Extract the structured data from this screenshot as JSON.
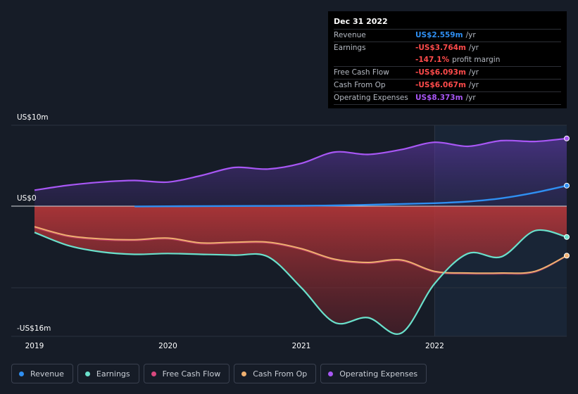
{
  "tooltip": {
    "date": "Dec 31 2022",
    "rows": [
      {
        "label": "Revenue",
        "value": "US$2.559m",
        "suffix": "/yr",
        "color": "#2f8ff2"
      },
      {
        "label": "Earnings",
        "value": "-US$3.764m",
        "suffix": "/yr",
        "color": "#ff4b4b"
      },
      {
        "label": "",
        "value": "-147.1%",
        "suffix": "profit margin",
        "color": "#ff4b4b"
      },
      {
        "label": "Free Cash Flow",
        "value": "-US$6.093m",
        "suffix": "/yr",
        "color": "#ff4b4b"
      },
      {
        "label": "Cash From Op",
        "value": "-US$6.067m",
        "suffix": "/yr",
        "color": "#ff4b4b"
      },
      {
        "label": "Operating Expenses",
        "value": "US$8.373m",
        "suffix": "/yr",
        "color": "#a857f5"
      }
    ]
  },
  "legend": [
    {
      "label": "Revenue",
      "color": "#2f8ff2"
    },
    {
      "label": "Earnings",
      "color": "#6ae0cb"
    },
    {
      "label": "Free Cash Flow",
      "color": "#d9487e"
    },
    {
      "label": "Cash From Op",
      "color": "#f0b070"
    },
    {
      "label": "Operating Expenses",
      "color": "#a857f5"
    }
  ],
  "chart_data": {
    "type": "area",
    "title": "",
    "xlabel": "",
    "ylabel": "",
    "y_top_label": "US$10m",
    "y_zero_label": "US$0",
    "y_bottom_label": "-US$16m",
    "ylim": [
      -16,
      10
    ],
    "xlim": [
      2019.0,
      2022.99
    ],
    "x_ticks": [
      {
        "value": 2019,
        "label": "2019"
      },
      {
        "value": 2020,
        "label": "2020"
      },
      {
        "value": 2021,
        "label": "2021"
      },
      {
        "value": 2022,
        "label": "2022"
      }
    ],
    "forecast_start": 2022.0,
    "series": [
      {
        "name": "Operating Expenses",
        "color": "#a857f5",
        "points": [
          [
            2019.0,
            2.0
          ],
          [
            2019.25,
            2.6
          ],
          [
            2019.5,
            3.0
          ],
          [
            2019.75,
            3.2
          ],
          [
            2020.0,
            3.0
          ],
          [
            2020.25,
            3.8
          ],
          [
            2020.5,
            4.8
          ],
          [
            2020.75,
            4.6
          ],
          [
            2021.0,
            5.3
          ],
          [
            2021.25,
            6.7
          ],
          [
            2021.5,
            6.4
          ],
          [
            2021.75,
            7.0
          ],
          [
            2022.0,
            7.9
          ],
          [
            2022.25,
            7.4
          ],
          [
            2022.5,
            8.1
          ],
          [
            2022.75,
            8.0
          ],
          [
            2022.99,
            8.373
          ]
        ]
      },
      {
        "name": "Revenue",
        "color": "#2f8ff2",
        "points": [
          [
            2019.75,
            0.0
          ],
          [
            2020.0,
            0.02
          ],
          [
            2020.5,
            0.05
          ],
          [
            2021.0,
            0.08
          ],
          [
            2021.25,
            0.12
          ],
          [
            2021.5,
            0.2
          ],
          [
            2021.75,
            0.3
          ],
          [
            2022.0,
            0.4
          ],
          [
            2022.25,
            0.6
          ],
          [
            2022.5,
            1.0
          ],
          [
            2022.75,
            1.7
          ],
          [
            2022.99,
            2.559
          ]
        ]
      },
      {
        "name": "Earnings",
        "color": "#6ae0cb",
        "points": [
          [
            2019.0,
            -3.2
          ],
          [
            2019.25,
            -4.8
          ],
          [
            2019.5,
            -5.6
          ],
          [
            2019.75,
            -5.9
          ],
          [
            2020.0,
            -5.8
          ],
          [
            2020.25,
            -5.9
          ],
          [
            2020.5,
            -6.0
          ],
          [
            2020.75,
            -6.2
          ],
          [
            2021.0,
            -10.0
          ],
          [
            2021.25,
            -14.3
          ],
          [
            2021.5,
            -13.7
          ],
          [
            2021.75,
            -15.6
          ],
          [
            2022.0,
            -9.5
          ],
          [
            2022.25,
            -5.8
          ],
          [
            2022.5,
            -6.2
          ],
          [
            2022.75,
            -3.0
          ],
          [
            2022.99,
            -3.764
          ]
        ]
      },
      {
        "name": "Cash From Op",
        "color": "#f0b070",
        "points": [
          [
            2019.0,
            -2.5
          ],
          [
            2019.25,
            -3.6
          ],
          [
            2019.5,
            -4.0
          ],
          [
            2019.75,
            -4.1
          ],
          [
            2020.0,
            -3.9
          ],
          [
            2020.25,
            -4.5
          ],
          [
            2020.5,
            -4.4
          ],
          [
            2020.75,
            -4.4
          ],
          [
            2021.0,
            -5.2
          ],
          [
            2021.25,
            -6.5
          ],
          [
            2021.5,
            -6.9
          ],
          [
            2021.75,
            -6.6
          ],
          [
            2022.0,
            -8.0
          ],
          [
            2022.25,
            -8.2
          ],
          [
            2022.5,
            -8.2
          ],
          [
            2022.75,
            -8.0
          ],
          [
            2022.99,
            -6.067
          ]
        ]
      },
      {
        "name": "Free Cash Flow",
        "color": "#d9487e",
        "points": [
          [
            2019.0,
            -2.6
          ],
          [
            2019.25,
            -3.7
          ],
          [
            2019.5,
            -4.1
          ],
          [
            2019.75,
            -4.2
          ],
          [
            2020.0,
            -4.0
          ],
          [
            2020.25,
            -4.6
          ],
          [
            2020.5,
            -4.5
          ],
          [
            2020.75,
            -4.5
          ],
          [
            2021.0,
            -5.3
          ],
          [
            2021.25,
            -6.6
          ],
          [
            2021.5,
            -7.0
          ],
          [
            2021.75,
            -6.7
          ],
          [
            2022.0,
            -8.1
          ],
          [
            2022.25,
            -8.3
          ],
          [
            2022.5,
            -8.3
          ],
          [
            2022.75,
            -8.1
          ],
          [
            2022.99,
            -6.093
          ]
        ]
      }
    ]
  }
}
